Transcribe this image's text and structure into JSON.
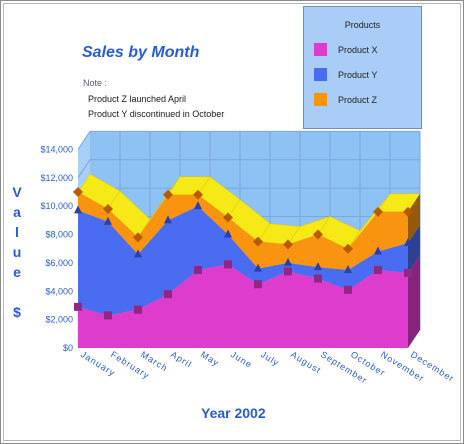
{
  "chart_data": {
    "type": "area",
    "title": "Sales by Month",
    "note": {
      "label": "Note :",
      "lines": [
        "Product Z launched April",
        "Product Y discontinued in October"
      ]
    },
    "xlabel": "Year 2002",
    "ylabel": "Value $",
    "categories": [
      "January",
      "February",
      "March",
      "April",
      "May",
      "June",
      "July",
      "August",
      "September",
      "October",
      "November",
      "December"
    ],
    "ylim": [
      0,
      14000
    ],
    "yticks": [
      "$0",
      "$2,000",
      "$4,000",
      "$6,000",
      "$8,000",
      "$10,000",
      "$12,000",
      "$14,000"
    ],
    "stacked": true,
    "legend_title": "Products",
    "legend_position": "top-right",
    "grid": true,
    "series": [
      {
        "name": "Product X",
        "color": "#dd3ccc",
        "values": [
          2900,
          2300,
          2700,
          3800,
          5500,
          5900,
          4500,
          5400,
          4900,
          4100,
          5500,
          5300
        ]
      },
      {
        "name": "Product Y",
        "color": "#4a6cf0",
        "values": [
          6800,
          6600,
          3900,
          5200,
          4500,
          2100,
          1100,
          600,
          800,
          1400,
          1300,
          2100
        ]
      },
      {
        "name": "Product Z",
        "color": "#f99410",
        "values": [
          1300,
          900,
          1200,
          1800,
          800,
          1200,
          1900,
          1300,
          2300,
          1500,
          2800,
          2200
        ]
      }
    ],
    "colors": {
      "top_face": "#f7e818",
      "back_wall": "#8ec2f5",
      "right_wall": "#8ec2f5",
      "grid": "#7fa7d8",
      "axis_text": "#2a5bd6"
    }
  }
}
